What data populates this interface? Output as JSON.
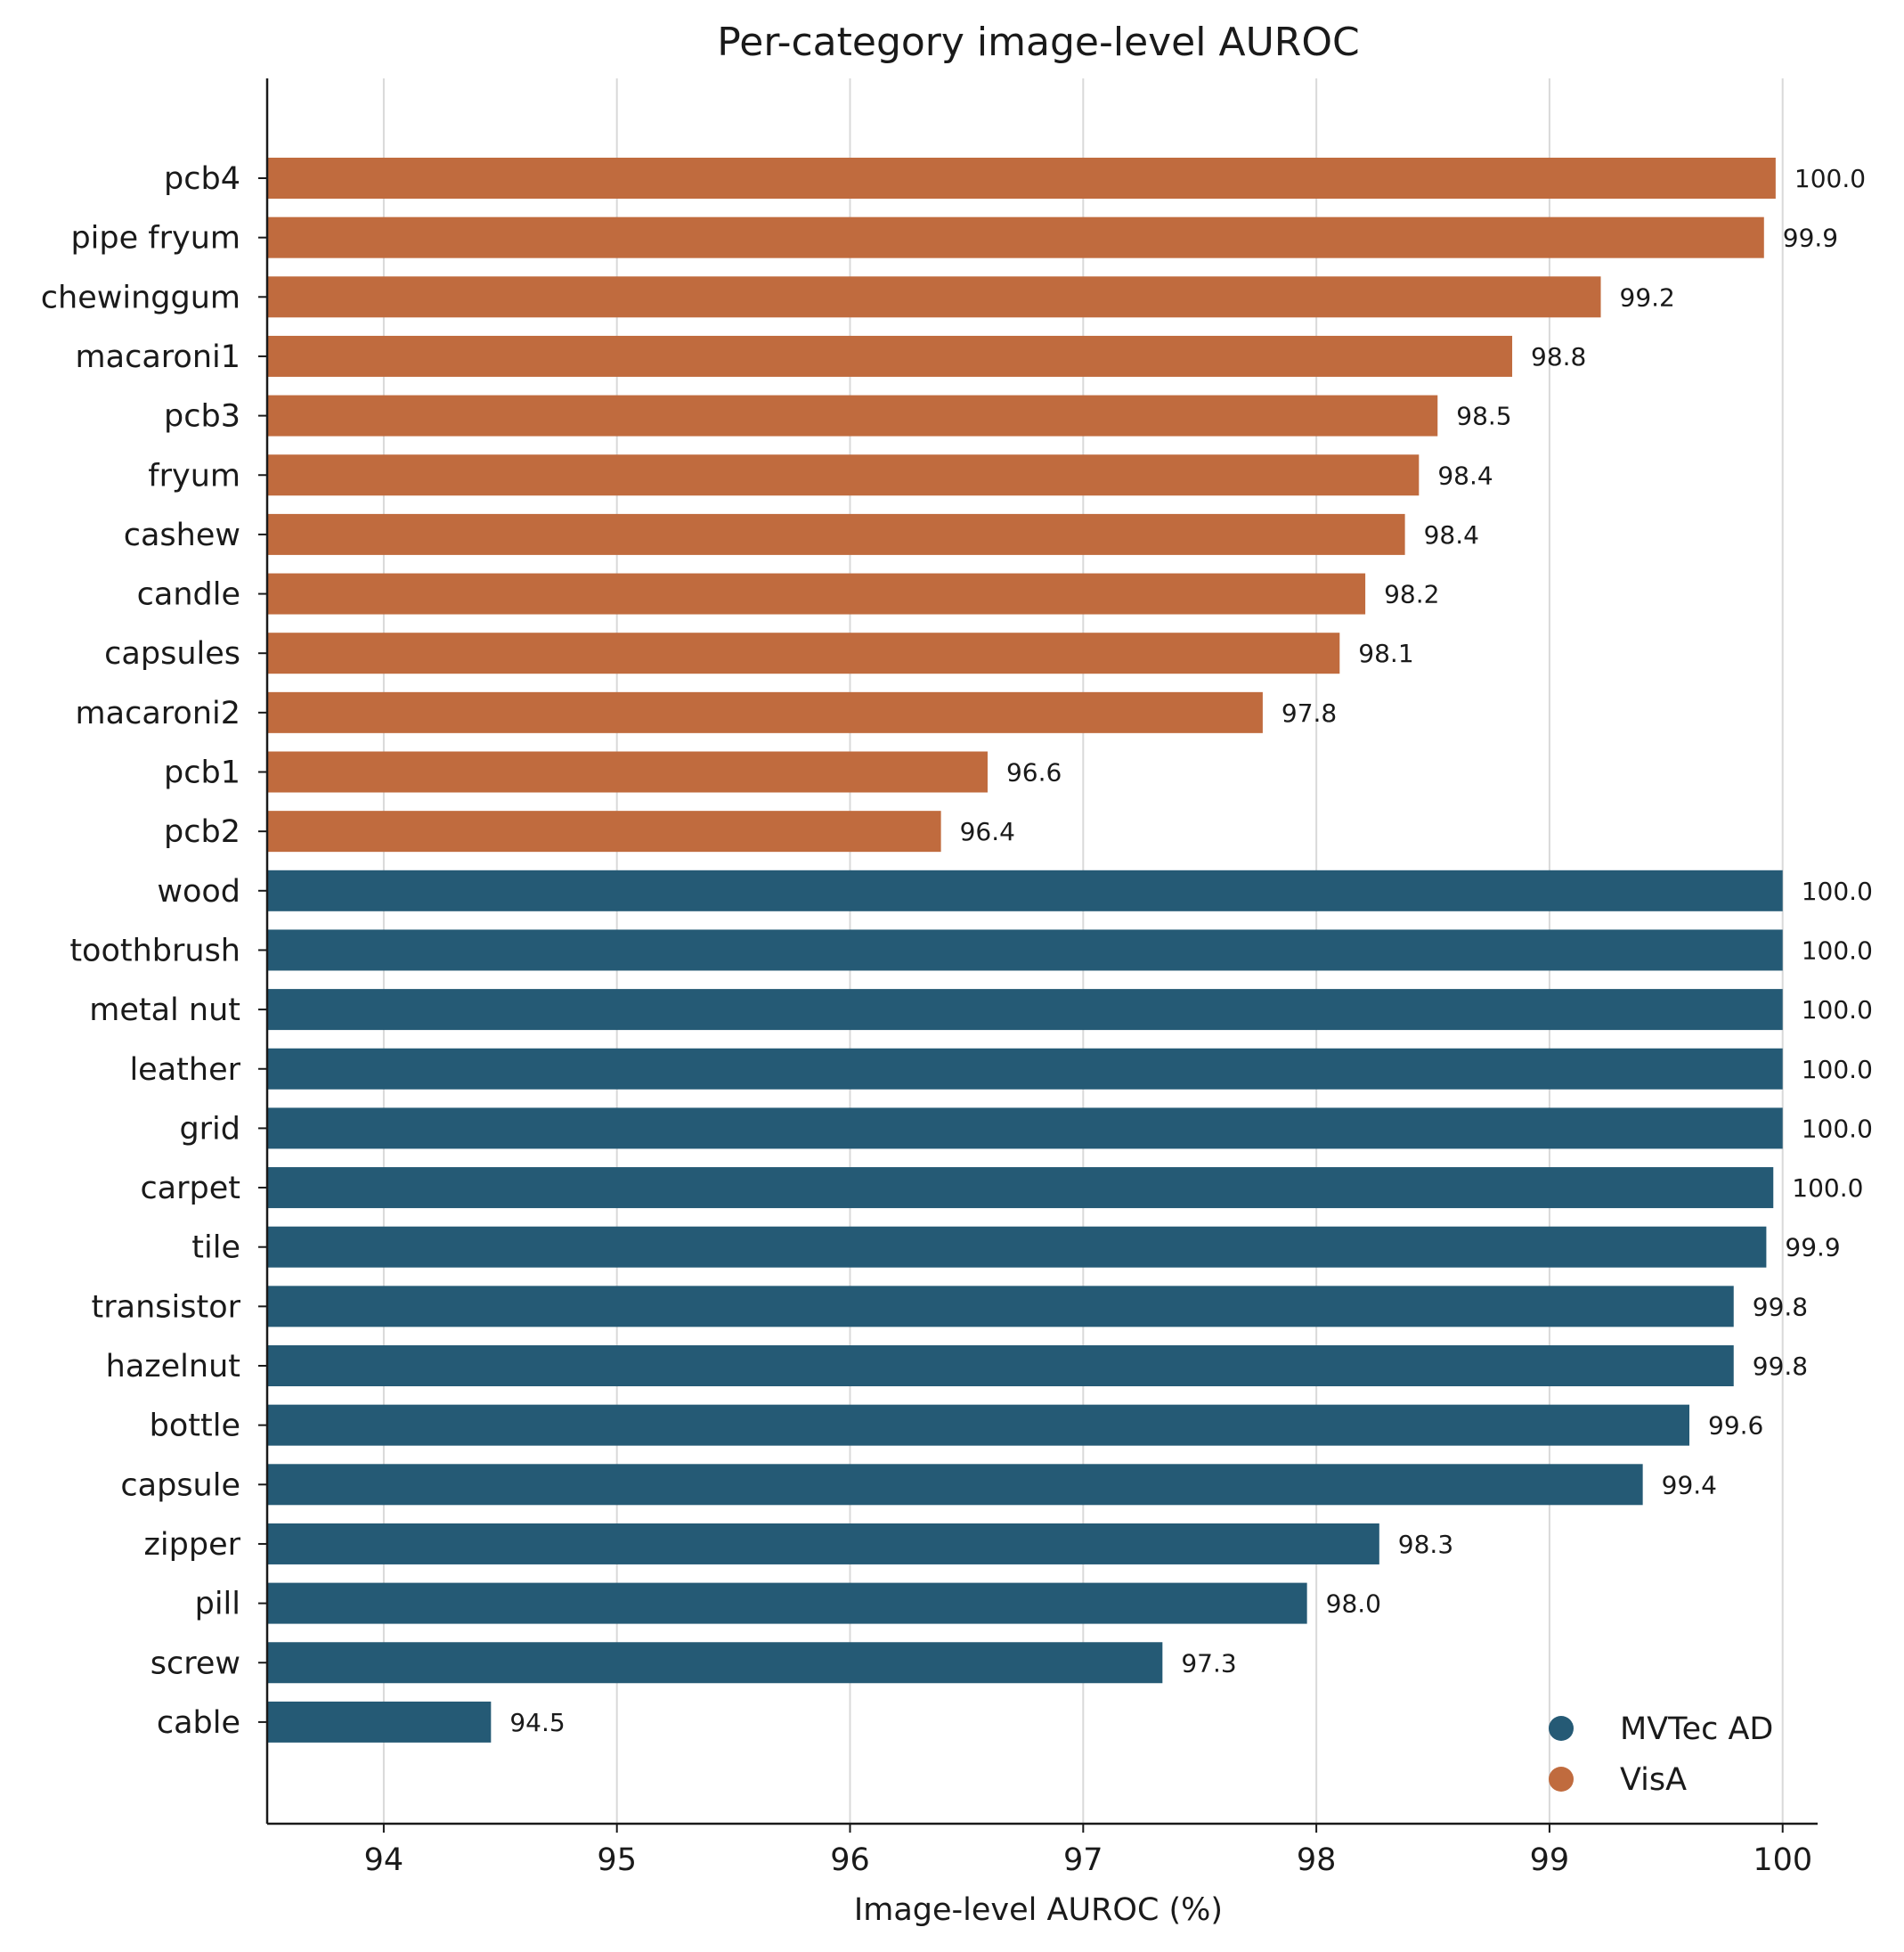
{
  "chart_data": {
    "type": "bar",
    "orientation": "horizontal",
    "title": "Per-category image-level AUROC",
    "xlabel": "Image-level AUROC (%)",
    "ylabel": "",
    "xlim": [
      93.5,
      100.15
    ],
    "xticks": [
      94,
      95,
      96,
      97,
      98,
      99,
      100
    ],
    "grid": "vertical",
    "legend_position": "bottom-right",
    "colors": {
      "MVTec AD": "#255a75",
      "VisA": "#c06b3e"
    },
    "legend": [
      {
        "name": "MVTec AD",
        "color": "#255a75"
      },
      {
        "name": "VisA",
        "color": "#c06b3e"
      }
    ],
    "categories": [
      "pcb4",
      "pipe fryum",
      "chewinggum",
      "macaroni1",
      "pcb3",
      "fryum",
      "cashew",
      "candle",
      "capsules",
      "macaroni2",
      "pcb1",
      "pcb2",
      "wood",
      "toothbrush",
      "metal nut",
      "leather",
      "grid",
      "carpet",
      "tile",
      "transistor",
      "hazelnut",
      "bottle",
      "capsule",
      "zipper",
      "pill",
      "screw",
      "cable"
    ],
    "values": [
      99.97,
      99.92,
      99.22,
      98.84,
      98.52,
      98.44,
      98.38,
      98.21,
      98.1,
      97.77,
      96.59,
      96.39,
      100.0,
      100.0,
      100.0,
      100.0,
      100.0,
      99.96,
      99.93,
      99.79,
      99.79,
      99.6,
      99.4,
      98.27,
      97.96,
      97.34,
      94.46
    ],
    "labels": [
      "100.0",
      "99.9",
      "99.2",
      "98.8",
      "98.5",
      "98.4",
      "98.4",
      "98.2",
      "98.1",
      "97.8",
      "96.6",
      "96.4",
      "100.0",
      "100.0",
      "100.0",
      "100.0",
      "100.0",
      "100.0",
      "99.9",
      "99.8",
      "99.8",
      "99.6",
      "99.4",
      "98.3",
      "98.0",
      "97.3",
      "94.5"
    ],
    "groups": [
      "VisA",
      "VisA",
      "VisA",
      "VisA",
      "VisA",
      "VisA",
      "VisA",
      "VisA",
      "VisA",
      "VisA",
      "VisA",
      "VisA",
      "MVTec AD",
      "MVTec AD",
      "MVTec AD",
      "MVTec AD",
      "MVTec AD",
      "MVTec AD",
      "MVTec AD",
      "MVTec AD",
      "MVTec AD",
      "MVTec AD",
      "MVTec AD",
      "MVTec AD",
      "MVTec AD",
      "MVTec AD",
      "MVTec AD"
    ]
  }
}
